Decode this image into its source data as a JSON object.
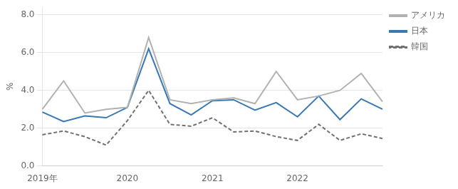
{
  "chart_data": {
    "type": "line",
    "title": "",
    "ylabel": "%",
    "categories": [
      "2019年",
      null,
      null,
      null,
      "2020",
      null,
      null,
      null,
      "2021",
      null,
      null,
      null,
      "2022",
      null,
      null,
      null,
      null
    ],
    "series": [
      {
        "name": "アメリカ",
        "color": "#b2b2b2",
        "line_style": "solid",
        "values": [
          3.0,
          4.5,
          2.8,
          3.0,
          3.1,
          6.8,
          3.5,
          3.3,
          3.5,
          3.6,
          3.3,
          5.0,
          3.5,
          3.7,
          4.0,
          4.9,
          3.4
        ]
      },
      {
        "name": "日本",
        "color": "#3878b4",
        "line_style": "solid",
        "values": [
          2.85,
          2.35,
          2.65,
          2.55,
          3.1,
          6.2,
          3.3,
          2.7,
          3.45,
          3.5,
          2.95,
          3.35,
          2.6,
          3.7,
          2.45,
          3.55,
          3.0
        ]
      },
      {
        "name": "韓国",
        "color": "#707070",
        "line_style": "dashed",
        "values": [
          1.65,
          1.85,
          1.55,
          1.1,
          2.4,
          4.0,
          2.2,
          2.1,
          2.55,
          1.8,
          1.85,
          1.55,
          1.35,
          2.2,
          1.35,
          1.7,
          1.45
        ]
      }
    ],
    "ylim": [
      0.0,
      8.4
    ],
    "yticks": [
      {
        "value": 0,
        "label": "0.0"
      },
      {
        "value": 2,
        "label": "2.0"
      },
      {
        "value": 4,
        "label": "4.0"
      },
      {
        "value": 6,
        "label": "6.0"
      },
      {
        "value": 8,
        "label": "8.0"
      }
    ],
    "grid": "y",
    "legend": "right"
  }
}
